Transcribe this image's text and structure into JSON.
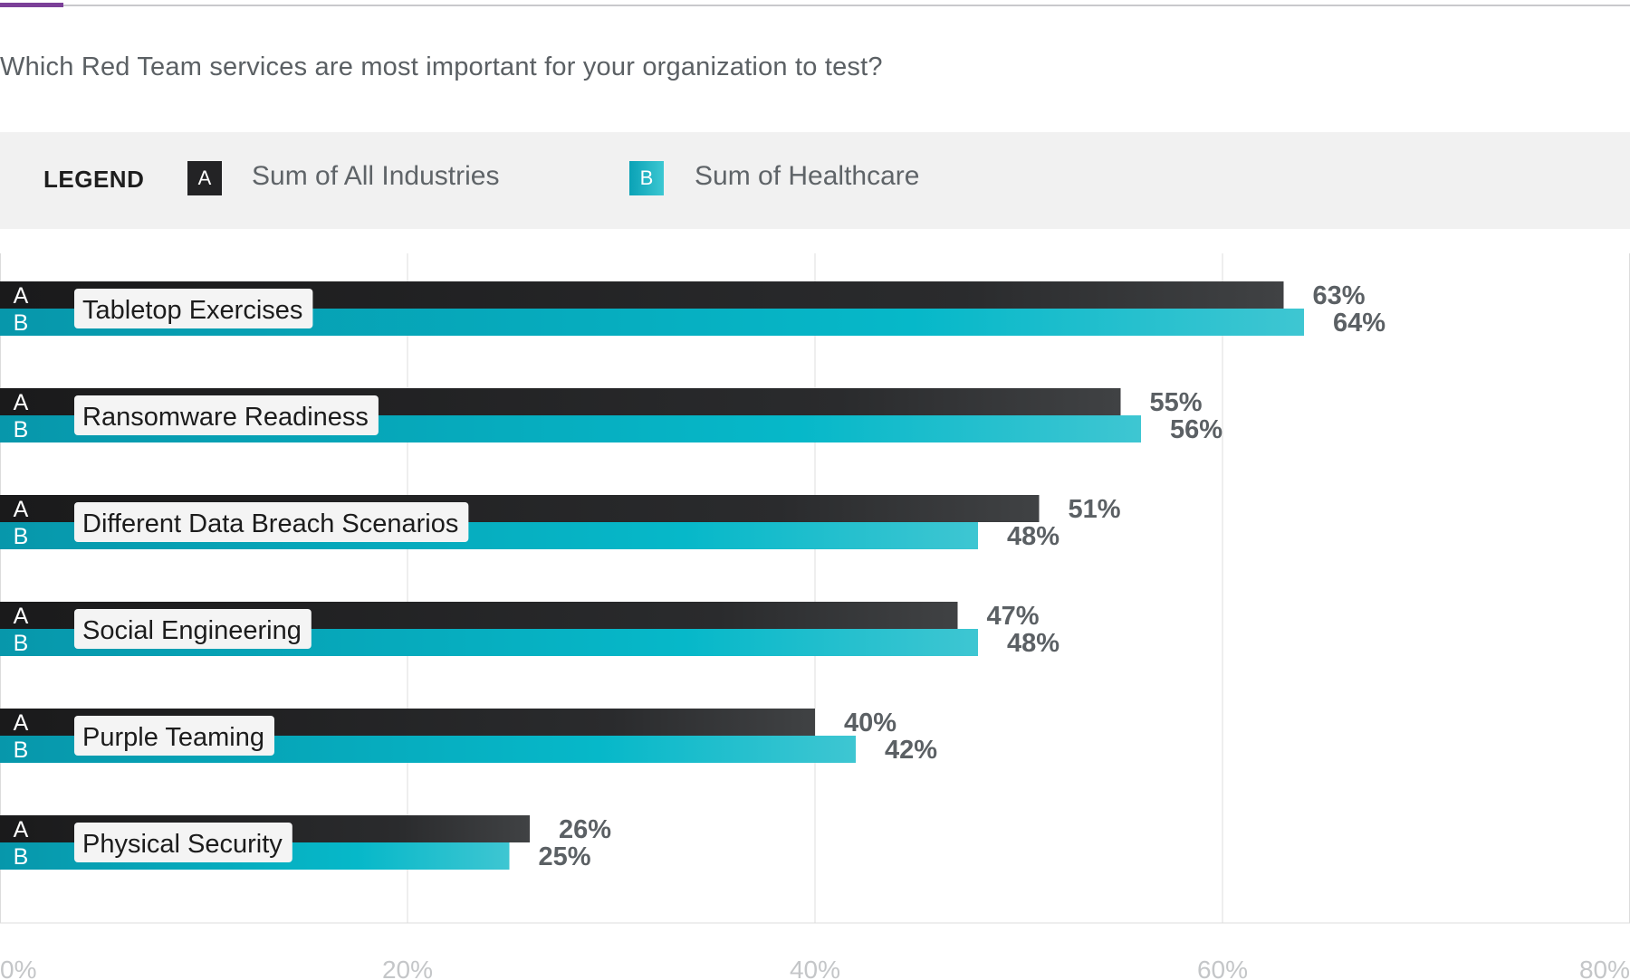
{
  "question": "Which Red Team services are most important for your organization to test?",
  "legend": {
    "title": "LEGEND",
    "a": {
      "letter": "A",
      "label": "Sum of All Industries"
    },
    "b": {
      "letter": "B",
      "label": "Sum of Healthcare"
    }
  },
  "colors": {
    "series_a": "#232325",
    "series_b": "#0aa2b6",
    "accent": "#7b3f98"
  },
  "chart_data": {
    "type": "bar",
    "orientation": "horizontal",
    "title": "Which Red Team services are most important for your organization to test?",
    "categories": [
      "Tabletop Exercises",
      "Ransomware Readiness",
      "Different Data Breach Scenarios",
      "Social Engineering",
      "Purple Teaming",
      "Physical Security"
    ],
    "series": [
      {
        "name": "Sum of All Industries",
        "letter": "A",
        "values": [
          63,
          55,
          51,
          47,
          40,
          26
        ]
      },
      {
        "name": "Sum of Healthcare",
        "letter": "B",
        "values": [
          64,
          56,
          48,
          48,
          42,
          25
        ]
      }
    ],
    "value_suffix": "%",
    "xlim": [
      0,
      80
    ],
    "xticks": [
      0,
      20,
      40,
      60,
      80
    ],
    "xtick_labels": [
      "0%",
      "20%",
      "40%",
      "60%",
      "80%"
    ],
    "grid": true,
    "legend_position": "top"
  }
}
